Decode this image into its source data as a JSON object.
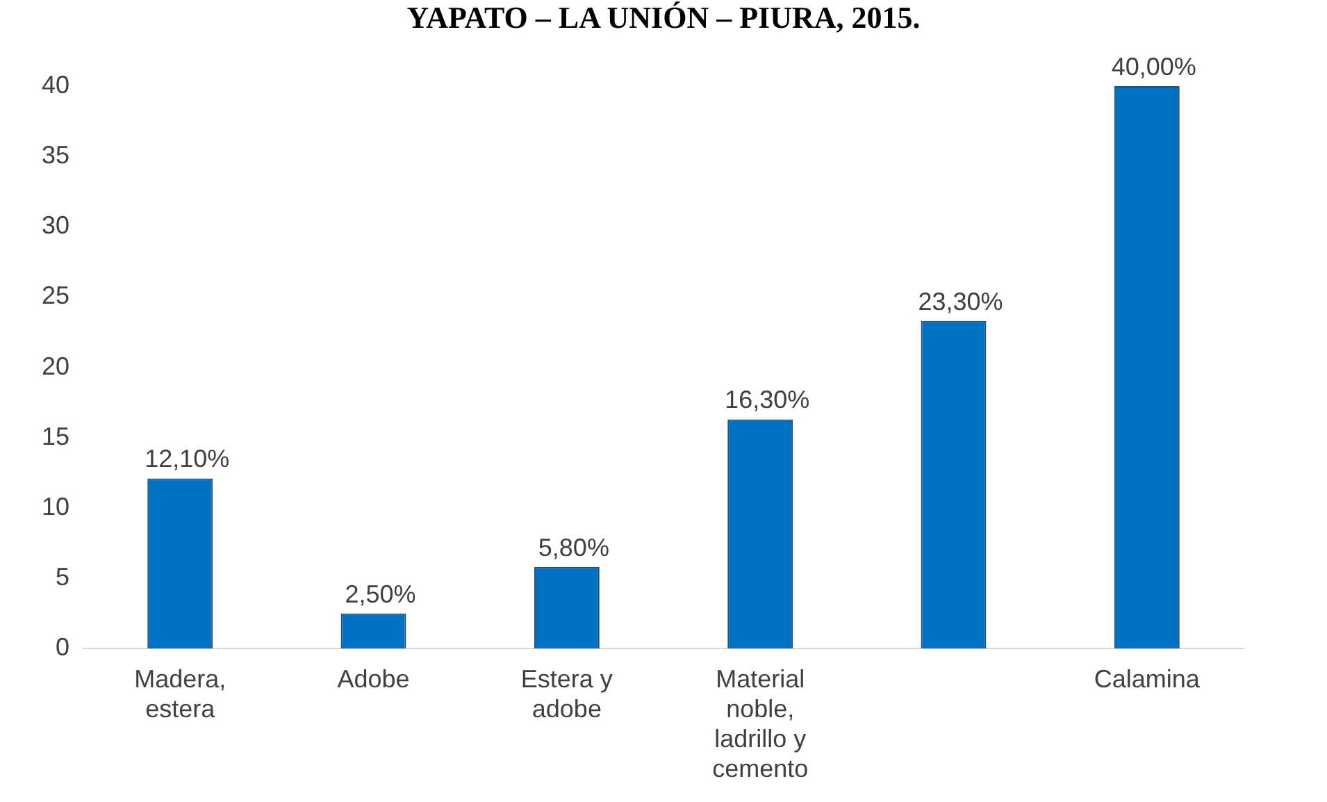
{
  "chart_data": {
    "type": "bar",
    "title": "YAPATO – LA UNIÓN – PIURA, 2015.",
    "categories": [
      "Madera, estera",
      "Adobe",
      "Estera y adobe",
      "Material noble, ladrillo y cemento",
      null,
      "Calamina"
    ],
    "values": [
      12.1,
      2.5,
      5.8,
      16.3,
      23.3,
      40.0
    ],
    "value_labels": [
      "12,10%",
      "2,50%",
      "5,80%",
      "16,30%",
      "23,30%",
      "40,00%"
    ],
    "color": "#0070c0",
    "ylim": [
      0,
      40
    ],
    "yticks": [
      0,
      5,
      10,
      15,
      20,
      25,
      30,
      35,
      40
    ],
    "grid": false,
    "legend": false
  }
}
